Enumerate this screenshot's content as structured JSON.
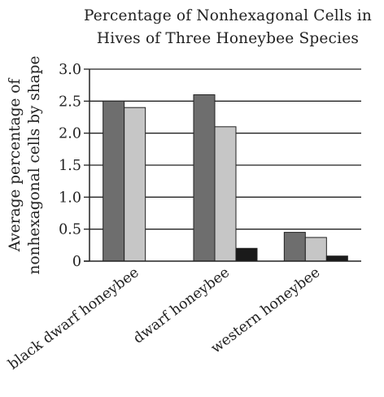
{
  "chart_data": {
    "type": "bar",
    "title_line1": "Percentage of Nonhexagonal Cells in",
    "title_line2": "Hives of Three Honeybee Species",
    "ylabel_line1": "Average percentage of",
    "ylabel_line2": "nonhexagonal cells by shape",
    "xlabel": "",
    "categories": [
      "black dwarf honeybee",
      "dwarf honeybee",
      "western honeybee"
    ],
    "series": [
      {
        "color": "#6e6e6e",
        "values": [
          2.5,
          2.6,
          0.45
        ]
      },
      {
        "color": "#c6c6c6",
        "values": [
          2.4,
          2.1,
          0.37
        ]
      },
      {
        "color": "#1a1a1a",
        "values": [
          0.0,
          0.2,
          0.08
        ]
      }
    ],
    "ylim": [
      0,
      3.0
    ],
    "yticks": [
      "0",
      "0.5",
      "1.0",
      "1.5",
      "2.0",
      "2.5",
      "3.0"
    ],
    "grid": true,
    "legend": "none"
  }
}
